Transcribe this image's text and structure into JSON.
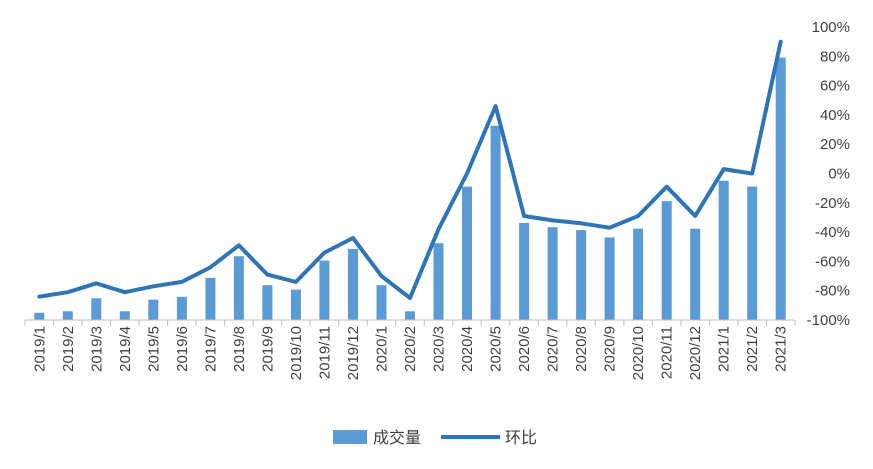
{
  "chart_data": {
    "type": "bar+line",
    "categories": [
      "2019/1",
      "2019/2",
      "2019/3",
      "2019/4",
      "2019/5",
      "2019/6",
      "2019/7",
      "2019/8",
      "2019/9",
      "2019/10",
      "2019/11",
      "2019/12",
      "2020/1",
      "2020/2",
      "2020/3",
      "2020/4",
      "2020/5",
      "2020/6",
      "2020/7",
      "2020/8",
      "2020/9",
      "2020/10",
      "2020/11",
      "2020/12",
      "2021/1",
      "2021/2",
      "2021/3"
    ],
    "series": [
      {
        "name": "成交量",
        "type": "bar",
        "color": "#5B9BD5",
        "values": [
          5,
          6,
          15,
          6,
          14,
          16,
          29,
          44,
          24,
          21,
          41,
          49,
          24,
          6,
          53,
          92,
          134,
          67,
          64,
          62,
          57,
          63,
          82,
          63,
          96,
          92,
          181
        ]
      },
      {
        "name": "环比",
        "type": "line",
        "color": "#2E75B6",
        "axis": "right",
        "values": [
          -84,
          -81,
          -75,
          -81,
          -77,
          -74,
          -64,
          -49,
          -69,
          -74,
          -54,
          -44,
          -70,
          -85,
          -38,
          0,
          46,
          -29,
          -32,
          -34,
          -37,
          -29,
          -9,
          -29,
          3,
          0,
          90
        ]
      }
    ],
    "y2lim": [
      -100,
      100
    ],
    "y2ticks": [
      "100%",
      "80%",
      "60%",
      "40%",
      "20%",
      "0%",
      "-20%",
      "-40%",
      "-60%",
      "-80%",
      "-100%"
    ],
    "legend": "bottom-center",
    "grid": false
  }
}
